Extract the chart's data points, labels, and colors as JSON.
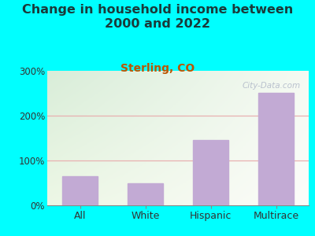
{
  "title": "Change in household income between\n2000 and 2022",
  "subtitle": "Sterling, CO",
  "categories": [
    "All",
    "White",
    "Hispanic",
    "Multirace"
  ],
  "values": [
    65,
    50,
    145,
    250
  ],
  "ylim": [
    0,
    300
  ],
  "yticks": [
    0,
    100,
    200,
    300
  ],
  "yticklabels": [
    "0%",
    "100%",
    "200%",
    "300%"
  ],
  "bar_color": "#c2aad4",
  "bar_edge_color": "#c2aad4",
  "title_color": "#1a3a3a",
  "subtitle_color": "#bb5500",
  "title_fontsize": 11.5,
  "subtitle_fontsize": 10,
  "tick_label_color": "#333333",
  "background_outer": "#00ffff",
  "grid_color": "#e8b0b0",
  "watermark_text": "City-Data.com",
  "watermark_color": "#b0b8c8",
  "plot_bg_top_left": "#d8edd8",
  "plot_bg_bottom_right": "#f8f8f0"
}
